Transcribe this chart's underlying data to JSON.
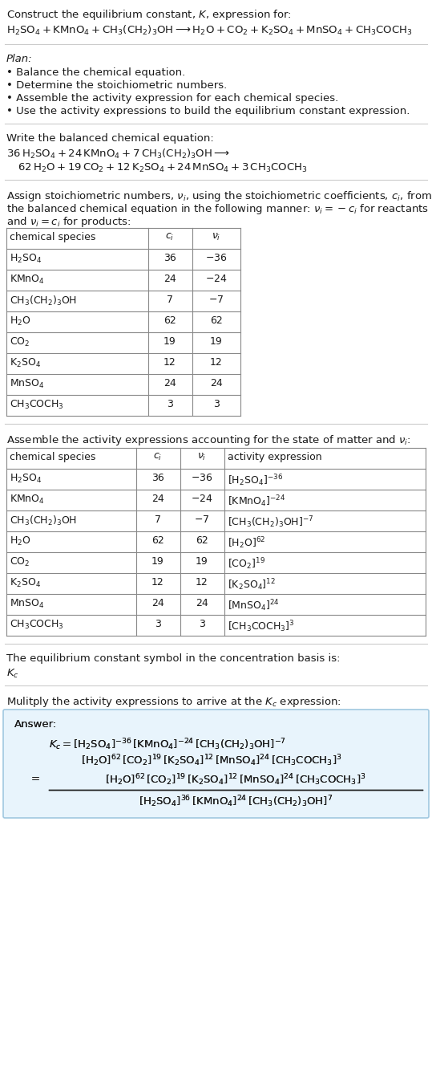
{
  "bg_color": "#ffffff",
  "text_color": "#1a1a1a",
  "table_line_color": "#888888",
  "sep_line_color": "#cccccc",
  "answer_box_color": "#e8f4fc",
  "answer_box_border": "#a0c8e0",
  "title_line1": "Construct the equilibrium constant, $K$, expression for:",
  "plan_header": "Plan:",
  "plan_items": [
    "Balance the chemical equation.",
    "Determine the stoichiometric numbers.",
    "Assemble the activity expression for each chemical species.",
    "Use the activity expressions to build the equilibrium constant expression."
  ],
  "balanced_header": "Write the balanced chemical equation:",
  "kc_header": "The equilibrium constant symbol in the concentration basis is:",
  "multiply_header": "Mulitply the activity expressions to arrive at the $K_c$ expression:",
  "table1_rows": [
    [
      "$\\mathrm{H_2SO_4}$",
      "36",
      "$-36$"
    ],
    [
      "$\\mathrm{KMnO_4}$",
      "24",
      "$-24$"
    ],
    [
      "$\\mathrm{CH_3(CH_2)_3OH}$",
      "7",
      "$-7$"
    ],
    [
      "$\\mathrm{H_2O}$",
      "62",
      "62"
    ],
    [
      "$\\mathrm{CO_2}$",
      "19",
      "19"
    ],
    [
      "$\\mathrm{K_2SO_4}$",
      "12",
      "12"
    ],
    [
      "$\\mathrm{MnSO_4}$",
      "24",
      "24"
    ],
    [
      "$\\mathrm{CH_3COCH_3}$",
      "3",
      "3"
    ]
  ],
  "table2_rows": [
    [
      "$\\mathrm{H_2SO_4}$",
      "36",
      "$-36$",
      "$[\\mathrm{H_2SO_4}]^{-36}$"
    ],
    [
      "$\\mathrm{KMnO_4}$",
      "24",
      "$-24$",
      "$[\\mathrm{KMnO_4}]^{-24}$"
    ],
    [
      "$\\mathrm{CH_3(CH_2)_3OH}$",
      "7",
      "$-7$",
      "$[\\mathrm{CH_3(CH_2)_3OH}]^{-7}$"
    ],
    [
      "$\\mathrm{H_2O}$",
      "62",
      "62",
      "$[\\mathrm{H_2O}]^{62}$"
    ],
    [
      "$\\mathrm{CO_2}$",
      "19",
      "19",
      "$[\\mathrm{CO_2}]^{19}$"
    ],
    [
      "$\\mathrm{K_2SO_4}$",
      "12",
      "12",
      "$[\\mathrm{K_2SO_4}]^{12}$"
    ],
    [
      "$\\mathrm{MnSO_4}$",
      "24",
      "24",
      "$[\\mathrm{MnSO_4}]^{24}$"
    ],
    [
      "$\\mathrm{CH_3COCH_3}$",
      "3",
      "3",
      "$[\\mathrm{CH_3COCH_3}]^3$"
    ]
  ]
}
